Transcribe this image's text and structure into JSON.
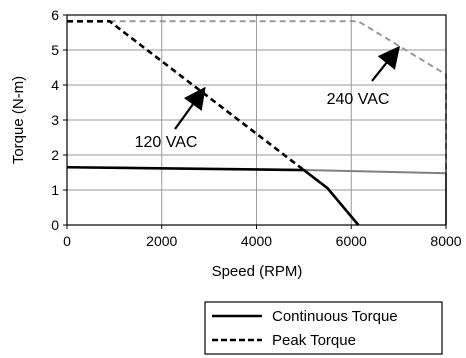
{
  "chart_data": {
    "type": "line",
    "xlabel": "Speed (RPM)",
    "ylabel": "Torque (N-m)",
    "xlim": [
      0,
      8000
    ],
    "ylim": [
      0,
      6
    ],
    "xticks": [
      0,
      2000,
      4000,
      6000,
      8000
    ],
    "yticks": [
      0,
      1,
      2,
      3,
      4,
      5,
      6
    ],
    "grid": true,
    "legend_position": "bottom-right",
    "legend": [
      {
        "label": "Continuous Torque",
        "style": "solid"
      },
      {
        "label": "Peak Torque",
        "style": "dashed"
      }
    ],
    "series": [
      {
        "legend_entry": "Continuous Torque",
        "voltage": "120 VAC",
        "style": "solid",
        "color": "#000000",
        "x": [
          0,
          5000,
          5500,
          6150
        ],
        "y": [
          1.65,
          1.57,
          1.05,
          0
        ]
      },
      {
        "legend_entry": "Peak Torque",
        "voltage": "120 VAC",
        "style": "dashed",
        "color": "#000000",
        "x": [
          0,
          900,
          5000
        ],
        "y": [
          5.82,
          5.82,
          1.57
        ]
      },
      {
        "legend_entry": "Continuous Torque",
        "voltage": "240 VAC",
        "style": "solid",
        "color": "#808080",
        "x": [
          5000,
          8000,
          8000
        ],
        "y": [
          1.57,
          1.48,
          0
        ]
      },
      {
        "legend_entry": "Peak Torque",
        "voltage": "240 VAC",
        "style": "dashed",
        "color": "#999999",
        "x": [
          900,
          6150,
          8000,
          8000
        ],
        "y": [
          5.82,
          5.82,
          4.3,
          1.48
        ]
      }
    ],
    "annotations": [
      {
        "text": "120 VAC",
        "points_to": {
          "x": 2900,
          "y": 3.9
        }
      },
      {
        "text": "240 VAC",
        "points_to": {
          "x": 7000,
          "y": 5.07
        }
      }
    ]
  }
}
